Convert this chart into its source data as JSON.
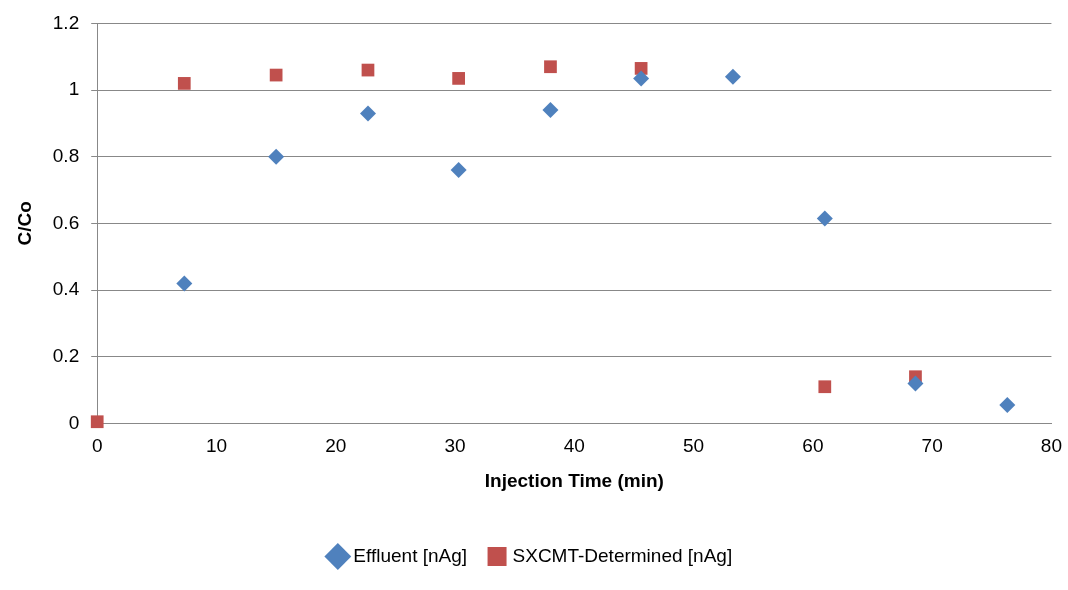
{
  "chart_data": {
    "type": "scatter",
    "xlabel": "Injection Time (min)",
    "ylabel": "C/Co",
    "xlim": [
      0,
      80
    ],
    "xticks": [
      0,
      10,
      20,
      30,
      40,
      50,
      60,
      70,
      80
    ],
    "ylim": [
      0,
      1.2
    ],
    "yticks": [
      0,
      0.2,
      0.4,
      0.6,
      0.8,
      1,
      1.2
    ],
    "grid": "y",
    "legend": "bottom",
    "series": [
      {
        "name": "Effluent [nAg]",
        "color": "#4f81bd",
        "marker": "diamond",
        "x": [
          7.3,
          15,
          22.7,
          30.3,
          38,
          45.6,
          53.3,
          61,
          68.6,
          76.3
        ],
        "values": [
          0.42,
          0.8,
          0.93,
          0.76,
          0.94,
          1.035,
          1.04,
          0.615,
          0.12,
          0.055
        ]
      },
      {
        "name": "SXCMT-Determined [nAg]",
        "color": "#c0504d",
        "marker": "square",
        "x": [
          0,
          7.3,
          15,
          22.7,
          30.3,
          38,
          45.6,
          61,
          68.6
        ],
        "values": [
          0.005,
          1.02,
          1.045,
          1.06,
          1.035,
          1.07,
          1.065,
          0.11,
          0.14
        ]
      }
    ]
  }
}
